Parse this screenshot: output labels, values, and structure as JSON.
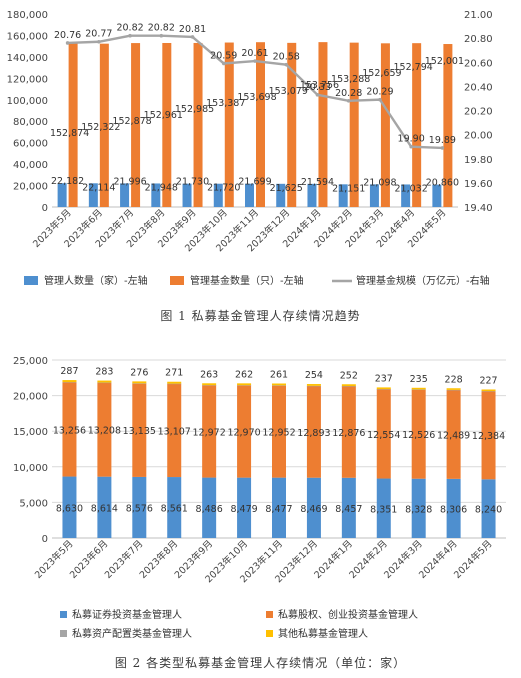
{
  "colors": {
    "blue": "#4e8fcf",
    "orange": "#ed7d31",
    "gray": "#a5a5a5",
    "yellow": "#ffc000",
    "grid": "#d9d9d9",
    "axis_text": "#444444"
  },
  "chart_data": [
    {
      "type": "bar",
      "title": "",
      "caption": "图 1  私募基金管理人存续情况趋势",
      "categories": [
        "2023年5月",
        "2023年6月",
        "2023年7月",
        "2023年8月",
        "2023年9月",
        "2023年10月",
        "2023年11月",
        "2023年12月",
        "2024年1月",
        "2024年2月",
        "2024年3月",
        "2024年4月",
        "2024年5月"
      ],
      "y_left": {
        "ticks": [
          "0",
          "20,000",
          "40,000",
          "60,000",
          "80,000",
          "100,000",
          "120,000",
          "140,000",
          "160,000",
          "180,000"
        ],
        "ylim": [
          0,
          180000
        ]
      },
      "y_right": {
        "ticks": [
          "19.40",
          "19.60",
          "19.80",
          "20.00",
          "20.20",
          "20.40",
          "20.60",
          "20.80",
          "21.00"
        ],
        "ylim": [
          19.4,
          21.0
        ]
      },
      "grid": false,
      "legend_position": "bottom",
      "series": [
        {
          "name": "管理人数量（家）-左轴",
          "type": "bar",
          "axis": "left",
          "color": "#4e8fcf",
          "values": [
            22182,
            22114,
            21996,
            21948,
            21730,
            21720,
            21699,
            21625,
            21594,
            21151,
            21098,
            21032,
            20860
          ],
          "labels": [
            "22,182",
            "22,114",
            "21,996",
            "21,948",
            "21,730",
            "21,720",
            "21,699",
            "21,625",
            "21,594",
            "21,151",
            "21,098",
            "21,032",
            "20,860"
          ]
        },
        {
          "name": "管理基金数量（只）-左轴",
          "type": "bar",
          "axis": "left",
          "color": "#ed7d31",
          "values": [
            152874,
            152322,
            152878,
            152961,
            152985,
            153387,
            153698,
            153079,
            153756,
            153288,
            152659,
            152794,
            152001
          ],
          "labels": [
            "152,874",
            "152,322",
            "152,878",
            "152,961",
            "152,985",
            "153,387",
            "153,698",
            "153,079",
            "153,756",
            "153,288",
            "152,659",
            "152,794",
            "152,001"
          ]
        },
        {
          "name": "管理基金规模（万亿元）-右轴",
          "type": "line",
          "axis": "right",
          "color": "#a5a5a5",
          "values": [
            20.76,
            20.77,
            20.82,
            20.82,
            20.81,
            20.59,
            20.61,
            20.58,
            20.33,
            20.28,
            20.29,
            19.9,
            19.89
          ],
          "labels": [
            "20.76",
            "20.77",
            "20.82",
            "20.82",
            "20.81",
            "20.59",
            "20.61",
            "20.58",
            "20.33",
            "20.28",
            "20.29",
            "19.90",
            "19.89"
          ]
        }
      ]
    },
    {
      "type": "bar",
      "stacked": true,
      "title": "",
      "caption": "图 2  各类型私募基金管理人存续情况（单位：家）",
      "categories": [
        "2023年5月",
        "2023年6月",
        "2023年7月",
        "2023年8月",
        "2023年9月",
        "2023年10月",
        "2023年11月",
        "2023年12月",
        "2024年1月",
        "2024年2月",
        "2024年3月",
        "2024年4月",
        "2024年5月"
      ],
      "y_left": {
        "ticks": [
          "0",
          "5,000",
          "10,000",
          "15,000",
          "20,000",
          "25,000"
        ],
        "ylim": [
          0,
          25000
        ]
      },
      "grid": true,
      "legend_position": "bottom",
      "top_labels": [
        "287",
        "283",
        "276",
        "271",
        "263",
        "262",
        "261",
        "254",
        "252",
        "237",
        "235",
        "228",
        "227"
      ],
      "series": [
        {
          "name": "私募证券投资基金管理人",
          "color": "#4e8fcf",
          "values": [
            8630,
            8614,
            8576,
            8561,
            8486,
            8479,
            8477,
            8469,
            8457,
            8351,
            8328,
            8306,
            8240
          ],
          "labels": [
            "8,630",
            "8,614",
            "8,576",
            "8,561",
            "8,486",
            "8,479",
            "8,477",
            "8,469",
            "8,457",
            "8,351",
            "8,328",
            "8,306",
            "8,240"
          ]
        },
        {
          "name": "私募股权、创业投资基金管理人",
          "color": "#ed7d31",
          "values": [
            13256,
            13208,
            13135,
            13107,
            12972,
            12970,
            12952,
            12893,
            12876,
            12554,
            12526,
            12489,
            12384
          ],
          "labels": [
            "13,256",
            "13,208",
            "13,135",
            "13,107",
            "12,972",
            "12,970",
            "12,952",
            "12,893",
            "12,876",
            "12,554",
            "12,526",
            "12,489",
            "12,384"
          ]
        },
        {
          "name": "私募资产配置类基金管理人",
          "color": "#a5a5a5",
          "values": [
            9,
            9,
            9,
            9,
            9,
            9,
            9,
            9,
            9,
            9,
            9,
            9,
            9
          ]
        },
        {
          "name": "其他私募基金管理人",
          "color": "#ffc000",
          "values": [
            287,
            283,
            276,
            271,
            263,
            262,
            261,
            254,
            252,
            237,
            235,
            228,
            227
          ]
        }
      ]
    }
  ]
}
